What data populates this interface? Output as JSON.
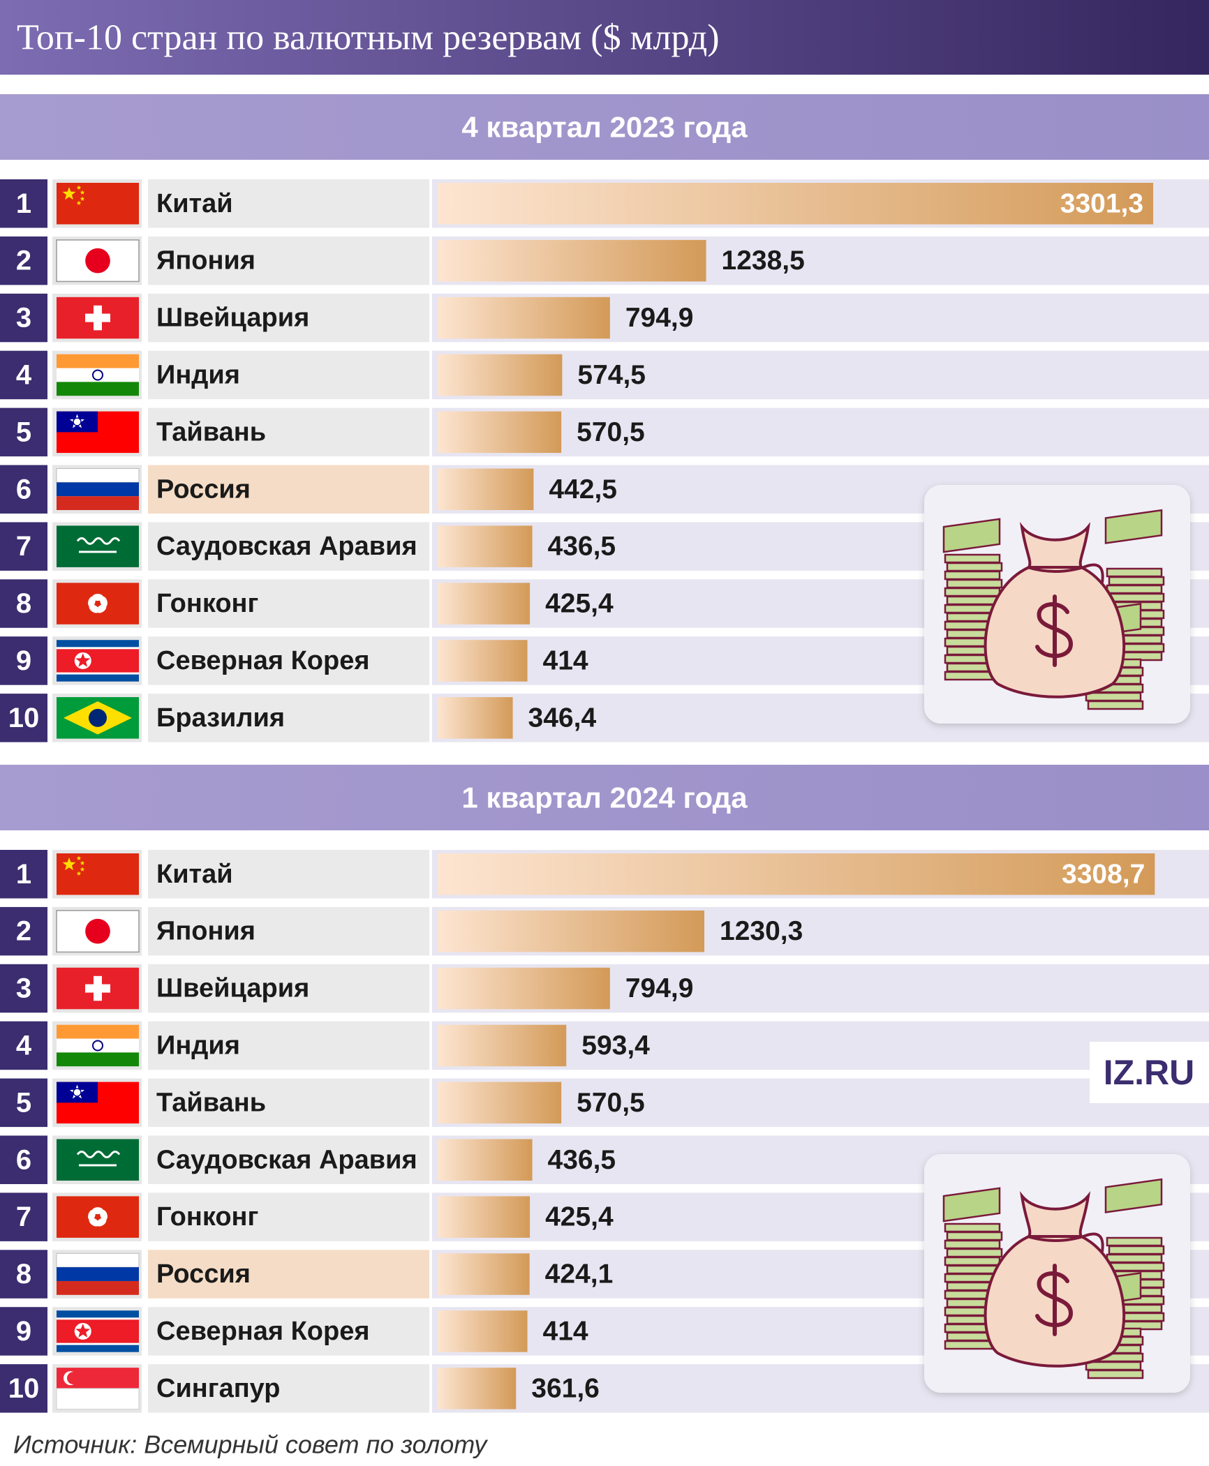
{
  "title": "Топ-10 стран по валютным резервам ($ млрд)",
  "source": "Источник: Всемирный совет по золоту",
  "logo": "IZ.RU",
  "chart_data": [
    {
      "type": "bar",
      "orientation": "horizontal",
      "title": "4 квартал 2023 года",
      "ranks": [
        1,
        2,
        3,
        4,
        5,
        6,
        7,
        8,
        9,
        10
      ],
      "categories": [
        "Китай",
        "Япония",
        "Швейцария",
        "Индия",
        "Тайвань",
        "Россия",
        "Саудовская Аравия",
        "Гонконг",
        "Северная Корея",
        "Бразилия"
      ],
      "values": [
        3301.3,
        1238.5,
        794.9,
        574.5,
        570.5,
        442.5,
        436.5,
        425.4,
        414,
        346.4
      ],
      "value_labels": [
        "3301,3",
        "1238,5",
        "794,9",
        "574,5",
        "570,5",
        "442,5",
        "436,5",
        "425,4",
        "414",
        "346,4"
      ],
      "color": [
        "#fde5d1",
        "#d39a58"
      ],
      "highlight": 5
    },
    {
      "type": "bar",
      "orientation": "horizontal",
      "title": "1 квартал 2024 года",
      "ranks": [
        1,
        2,
        3,
        4,
        5,
        6,
        7,
        8,
        9,
        10
      ],
      "categories": [
        "Китай",
        "Япония",
        "Швейцария",
        "Индия",
        "Тайвань",
        "Саудовская Аравия",
        "Гонконг",
        "Россия",
        "Северная Корея",
        "Сингапур"
      ],
      "values": [
        3308.7,
        1230.3,
        794.9,
        593.4,
        570.5,
        436.5,
        425.4,
        424.1,
        414,
        361.6
      ],
      "value_labels": [
        "3308,7",
        "1230,3",
        "794,9",
        "593,4",
        "570,5",
        "436,5",
        "425,4",
        "424,1",
        "414",
        "361,6"
      ],
      "color": [
        "#fde5d1",
        "#d39a58"
      ],
      "highlight": 7
    }
  ]
}
